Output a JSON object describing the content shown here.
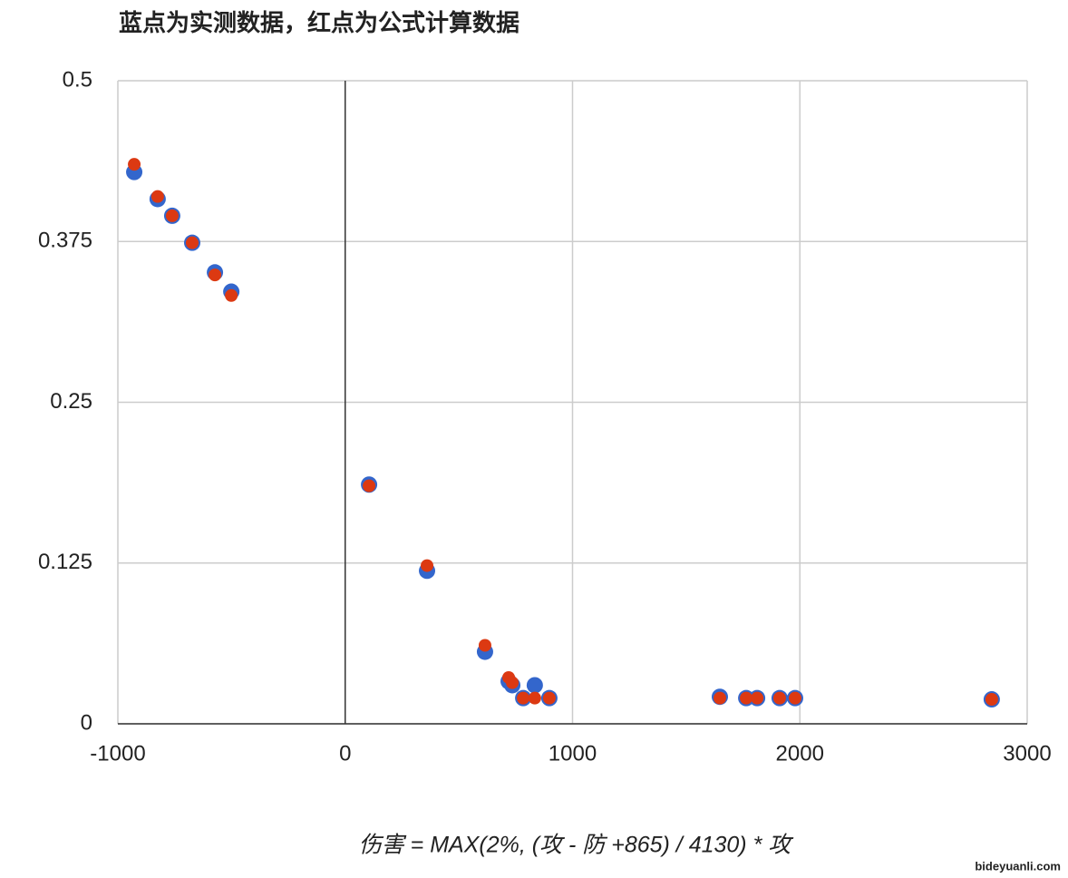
{
  "chart_data": {
    "type": "scatter",
    "title": "蓝点为实测数据，红点为公式计算数据",
    "x_label": "伤害 = MAX(2%, (攻 - 防 +865) / 4130) * 攻",
    "watermark": "bideyuanli.com",
    "x": [
      -928,
      -825,
      -761,
      -673,
      -573,
      -501,
      105,
      360,
      615,
      719,
      735,
      783,
      834,
      898,
      1648,
      1764,
      1812,
      1911,
      1979,
      2844
    ],
    "series": [
      {
        "name": "实测数据",
        "color": "#3366cc",
        "values": [
          0.429,
          0.408,
          0.395,
          0.374,
          0.351,
          0.336,
          0.186,
          0.119,
          0.056,
          0.033,
          0.03,
          0.02,
          0.03,
          0.02,
          0.021,
          0.02,
          0.02,
          0.02,
          0.02,
          0.019
        ]
      },
      {
        "name": "公式计算数据",
        "color": "#dc3912",
        "values": [
          0.435,
          0.41,
          0.395,
          0.374,
          0.349,
          0.333,
          0.185,
          0.123,
          0.061,
          0.036,
          0.032,
          0.02,
          0.02,
          0.02,
          0.02,
          0.02,
          0.02,
          0.02,
          0.02,
          0.019
        ]
      }
    ],
    "xlim": [
      -1000,
      3000
    ],
    "xticks": [
      -1000,
      0,
      1000,
      2000,
      3000
    ],
    "ylim": [
      0,
      0.5
    ],
    "yticks": [
      0,
      0.125,
      0.25,
      0.375,
      0.5
    ],
    "grid": true
  }
}
